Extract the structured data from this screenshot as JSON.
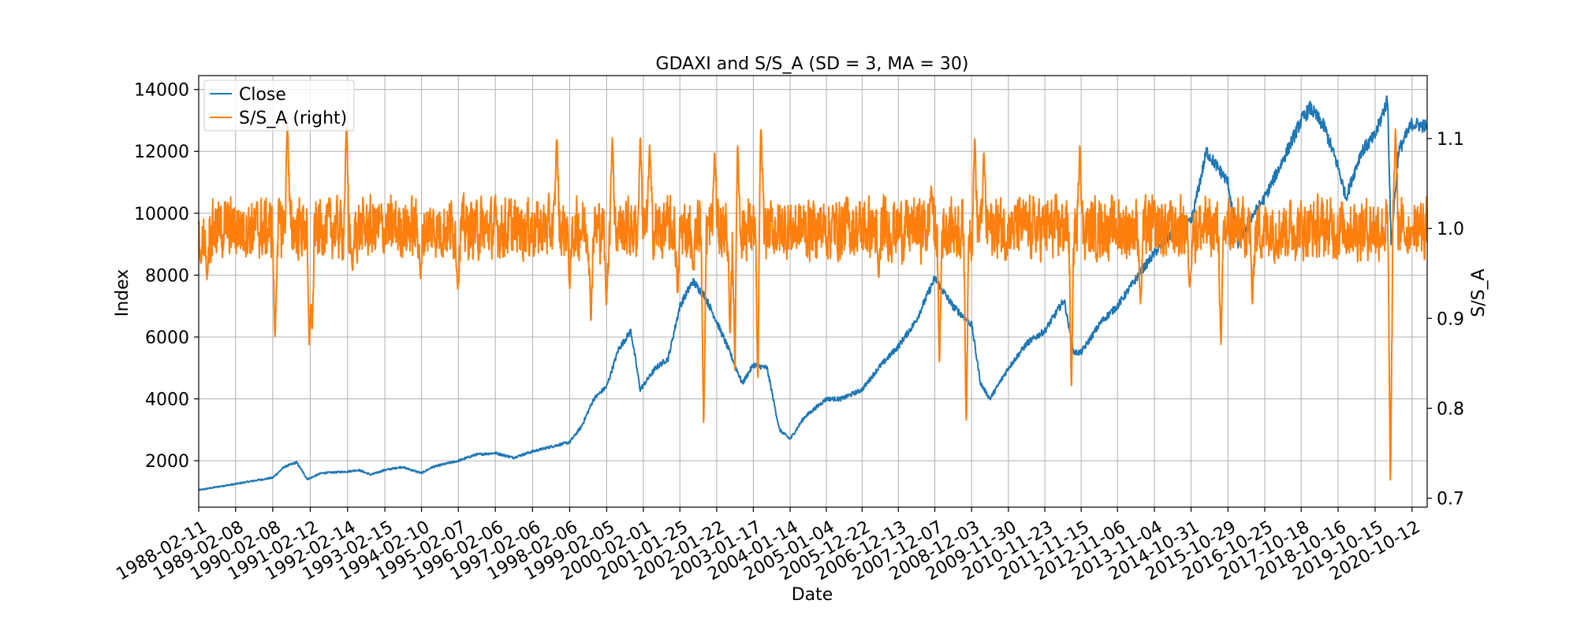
{
  "chart_data": {
    "type": "line",
    "title": "GDAXI and S/S_A (SD = 3, MA = 30)",
    "xlabel": "Date",
    "ylabel": "Index",
    "ylabel_right": "S/S_A",
    "grid": true,
    "legend_position": "top-left",
    "x_tick_labels": [
      "1988-02-11",
      "1989-02-08",
      "1990-02-08",
      "1991-02-12",
      "1992-02-14",
      "1993-02-15",
      "1994-02-10",
      "1995-02-07",
      "1996-02-06",
      "1997-02-06",
      "1998-02-06",
      "1999-02-05",
      "2000-02-01",
      "2001-01-25",
      "2002-01-22",
      "2003-01-17",
      "2004-01-14",
      "2005-01-04",
      "2005-12-22",
      "2006-12-13",
      "2007-12-07",
      "2008-12-03",
      "2009-11-30",
      "2010-11-23",
      "2011-11-15",
      "2012-11-06",
      "2013-11-04",
      "2014-10-31",
      "2015-10-29",
      "2016-10-25",
      "2017-10-18",
      "2018-10-16",
      "2019-10-15",
      "2020-10-12"
    ],
    "y_left": {
      "ticks": [
        2000,
        4000,
        6000,
        8000,
        10000,
        12000,
        14000
      ],
      "lim": [
        500,
        14450
      ]
    },
    "y_right": {
      "ticks": [
        0.7,
        0.8,
        0.9,
        1.0,
        1.1
      ],
      "lim": [
        0.69,
        1.17
      ]
    },
    "x_range": [
      "1988-02-11",
      "2021-03-10"
    ],
    "series": [
      {
        "name": "Close",
        "axis": "left",
        "color": "#1f77b4",
        "points": [
          [
            "1988-02-11",
            1050
          ],
          [
            "1988-08-01",
            1150
          ],
          [
            "1989-02-08",
            1250
          ],
          [
            "1989-08-01",
            1350
          ],
          [
            "1990-02-08",
            1450
          ],
          [
            "1990-06-01",
            1800
          ],
          [
            "1990-10-01",
            1950
          ],
          [
            "1991-01-15",
            1400
          ],
          [
            "1991-06-01",
            1600
          ],
          [
            "1992-02-14",
            1650
          ],
          [
            "1992-06-01",
            1700
          ],
          [
            "1992-10-01",
            1550
          ],
          [
            "1993-02-15",
            1700
          ],
          [
            "1993-08-01",
            1800
          ],
          [
            "1994-02-10",
            1600
          ],
          [
            "1994-06-01",
            1800
          ],
          [
            "1995-02-07",
            2000
          ],
          [
            "1995-08-01",
            2200
          ],
          [
            "1996-02-06",
            2250
          ],
          [
            "1996-08-01",
            2100
          ],
          [
            "1997-02-06",
            2300
          ],
          [
            "1997-08-01",
            2450
          ],
          [
            "1998-02-06",
            2600
          ],
          [
            "1998-06-01",
            3100
          ],
          [
            "1998-10-01",
            4000
          ],
          [
            "1999-02-05",
            4400
          ],
          [
            "1999-06-01",
            5600
          ],
          [
            "1999-10-01",
            6200
          ],
          [
            "2000-01-01",
            4300
          ],
          [
            "2000-06-01",
            5000
          ],
          [
            "2000-10-01",
            5300
          ],
          [
            "2001-01-25",
            7000
          ],
          [
            "2001-06-01",
            7800
          ],
          [
            "2001-10-01",
            7300
          ],
          [
            "2002-01-22",
            6500
          ],
          [
            "2002-06-01",
            5500
          ],
          [
            "2002-10-01",
            4500
          ],
          [
            "2003-01-17",
            5100
          ],
          [
            "2003-06-01",
            5000
          ],
          [
            "2003-10-01",
            3000
          ],
          [
            "2004-01-14",
            2700
          ],
          [
            "2004-06-01",
            3400
          ],
          [
            "2005-01-04",
            4000
          ],
          [
            "2005-06-01",
            4000
          ],
          [
            "2005-12-22",
            4300
          ],
          [
            "2006-06-01",
            5000
          ],
          [
            "2006-12-13",
            5700
          ],
          [
            "2007-06-01",
            6500
          ],
          [
            "2007-12-07",
            7900
          ],
          [
            "2008-06-01",
            7000
          ],
          [
            "2008-12-03",
            6400
          ],
          [
            "2009-03-01",
            4500
          ],
          [
            "2009-06-01",
            4000
          ],
          [
            "2009-11-30",
            5000
          ],
          [
            "2010-06-01",
            5800
          ],
          [
            "2010-11-23",
            6200
          ],
          [
            "2011-06-01",
            7200
          ],
          [
            "2011-09-01",
            5500
          ],
          [
            "2011-11-15",
            5500
          ],
          [
            "2012-06-01",
            6500
          ],
          [
            "2012-11-06",
            7000
          ],
          [
            "2013-06-01",
            8000
          ],
          [
            "2013-11-04",
            8700
          ],
          [
            "2014-06-01",
            9500
          ],
          [
            "2014-10-31",
            9700
          ],
          [
            "2015-04-01",
            12000
          ],
          [
            "2015-10-29",
            11000
          ],
          [
            "2016-02-01",
            9000
          ],
          [
            "2016-06-01",
            9800
          ],
          [
            "2016-10-25",
            10500
          ],
          [
            "2017-06-01",
            12000
          ],
          [
            "2017-10-18",
            13000
          ],
          [
            "2018-01-15",
            13400
          ],
          [
            "2018-06-01",
            12800
          ],
          [
            "2018-10-16",
            11500
          ],
          [
            "2019-01-01",
            10500
          ],
          [
            "2019-06-01",
            12000
          ],
          [
            "2019-10-15",
            12500
          ],
          [
            "2020-02-15",
            13700
          ],
          [
            "2020-03-20",
            9000
          ],
          [
            "2020-06-01",
            12000
          ],
          [
            "2020-10-12",
            12900
          ],
          [
            "2021-03-10",
            12800
          ]
        ]
      },
      {
        "name": "S/S_A (right)",
        "axis": "right",
        "color": "#ff7f0e",
        "baseline": 1.0,
        "amplitude": 0.045,
        "spikes": [
          [
            "1988-03-01",
            0.96
          ],
          [
            "1988-05-01",
            0.94
          ],
          [
            "1990-03-01",
            0.87
          ],
          [
            "1990-07-01",
            1.13
          ],
          [
            "1991-02-01",
            0.86
          ],
          [
            "1991-03-01",
            0.88
          ],
          [
            "1992-02-01",
            1.12
          ],
          [
            "1992-04-01",
            0.95
          ],
          [
            "1994-02-01",
            0.94
          ],
          [
            "1995-02-01",
            0.93
          ],
          [
            "1997-10-01",
            1.11
          ],
          [
            "1998-02-06",
            0.93
          ],
          [
            "1998-09-01",
            0.89
          ],
          [
            "1999-02-01",
            0.91
          ],
          [
            "1999-04-01",
            1.11
          ],
          [
            "2000-01-01",
            1.11
          ],
          [
            "2000-04-01",
            1.1
          ],
          [
            "2001-01-01",
            0.92
          ],
          [
            "2001-06-01",
            0.95
          ],
          [
            "2001-09-15",
            0.77
          ],
          [
            "2002-01-01",
            1.09
          ],
          [
            "2002-06-01",
            0.87
          ],
          [
            "2002-07-20",
            0.83
          ],
          [
            "2002-08-15",
            1.1
          ],
          [
            "2003-03-01",
            0.82
          ],
          [
            "2003-04-01",
            1.12
          ],
          [
            "2006-06-01",
            0.94
          ],
          [
            "2007-11-01",
            1.05
          ],
          [
            "2008-01-20",
            0.84
          ],
          [
            "2008-10-10",
            0.77
          ],
          [
            "2009-01-01",
            1.11
          ],
          [
            "2009-04-01",
            1.09
          ],
          [
            "2011-08-10",
            0.81
          ],
          [
            "2011-11-01",
            1.1
          ],
          [
            "2013-06-20",
            0.91
          ],
          [
            "2014-10-15",
            0.93
          ],
          [
            "2015-08-20",
            0.86
          ],
          [
            "2016-06-24",
            0.91
          ],
          [
            "2020-03-12",
            0.7
          ],
          [
            "2020-05-01",
            1.12
          ],
          [
            "2020-10-12",
            1.0
          ]
        ]
      }
    ]
  }
}
